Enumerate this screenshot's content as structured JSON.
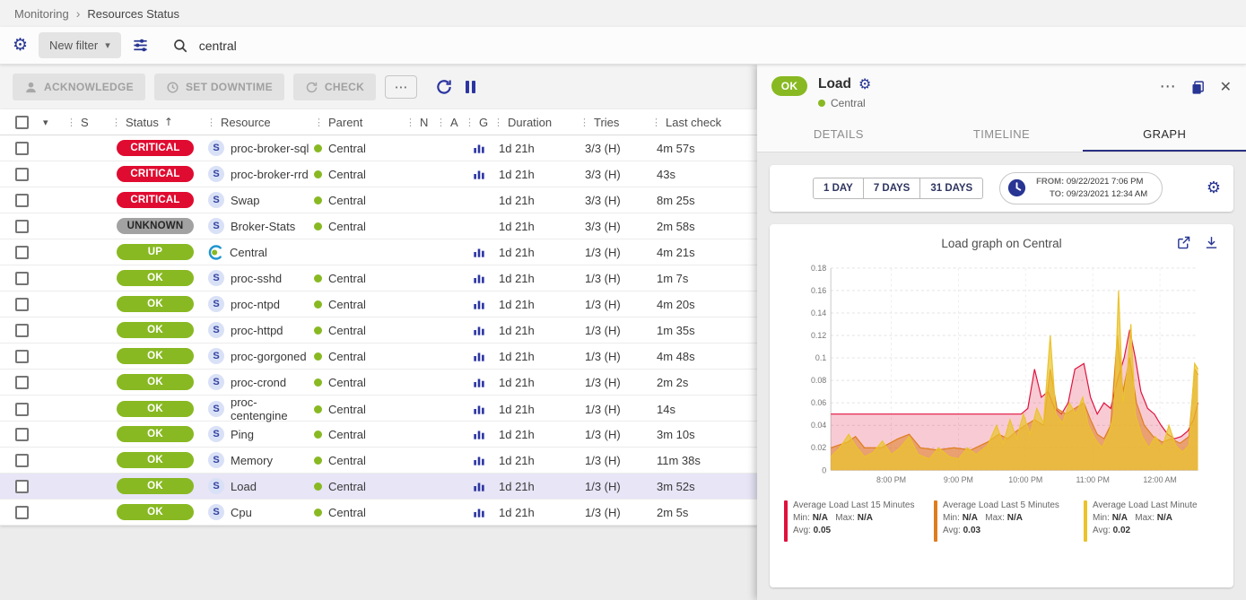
{
  "icons": {
    "gear": "⚙",
    "drag": "⋮",
    "sort_asc": "↑",
    "caret_down": "▾",
    "more": "⋯",
    "close": "✕",
    "crumb_separator": "›"
  },
  "breadcrumb": {
    "items": [
      "Monitoring",
      "Resources Status"
    ]
  },
  "filter_bar": {
    "new_filter_label": "New filter",
    "search_value": "central"
  },
  "toolbar": {
    "acknowledge_label": "ACKNOWLEDGE",
    "set_downtime_label": "SET DOWNTIME",
    "check_label": "CHECK"
  },
  "table": {
    "columns": {
      "s": "S",
      "status": "Status",
      "resource": "Resource",
      "parent": "Parent",
      "n": "N",
      "a": "A",
      "g": "G",
      "duration": "Duration",
      "tries": "Tries",
      "last_check": "Last check"
    },
    "rows": [
      {
        "status": "CRITICAL",
        "status_type": "critical",
        "resource_type": "service",
        "resource": "proc-broker-sql",
        "parent": "Central",
        "graph": true,
        "duration": "1d 21h",
        "tries": "3/3 (H)",
        "last_check": "4m 57s",
        "selected": false
      },
      {
        "status": "CRITICAL",
        "status_type": "critical",
        "resource_type": "service",
        "resource": "proc-broker-rrd",
        "parent": "Central",
        "graph": true,
        "duration": "1d 21h",
        "tries": "3/3 (H)",
        "last_check": "43s",
        "selected": false
      },
      {
        "status": "CRITICAL",
        "status_type": "critical",
        "resource_type": "service",
        "resource": "Swap",
        "parent": "Central",
        "graph": false,
        "duration": "1d 21h",
        "tries": "3/3 (H)",
        "last_check": "8m 25s",
        "selected": false
      },
      {
        "status": "UNKNOWN",
        "status_type": "unknown",
        "resource_type": "service",
        "resource": "Broker-Stats",
        "parent": "Central",
        "graph": false,
        "duration": "1d 21h",
        "tries": "3/3 (H)",
        "last_check": "2m 58s",
        "selected": false
      },
      {
        "status": "UP",
        "status_type": "ok",
        "resource_type": "host",
        "resource": "Central",
        "parent": "",
        "graph": true,
        "duration": "1d 21h",
        "tries": "1/3 (H)",
        "last_check": "4m 21s",
        "selected": false
      },
      {
        "status": "OK",
        "status_type": "ok",
        "resource_type": "service",
        "resource": "proc-sshd",
        "parent": "Central",
        "graph": true,
        "duration": "1d 21h",
        "tries": "1/3 (H)",
        "last_check": "1m 7s",
        "selected": false
      },
      {
        "status": "OK",
        "status_type": "ok",
        "resource_type": "service",
        "resource": "proc-ntpd",
        "parent": "Central",
        "graph": true,
        "duration": "1d 21h",
        "tries": "1/3 (H)",
        "last_check": "4m 20s",
        "selected": false
      },
      {
        "status": "OK",
        "status_type": "ok",
        "resource_type": "service",
        "resource": "proc-httpd",
        "parent": "Central",
        "graph": true,
        "duration": "1d 21h",
        "tries": "1/3 (H)",
        "last_check": "1m 35s",
        "selected": false
      },
      {
        "status": "OK",
        "status_type": "ok",
        "resource_type": "service",
        "resource": "proc-gorgoned",
        "parent": "Central",
        "graph": true,
        "duration": "1d 21h",
        "tries": "1/3 (H)",
        "last_check": "4m 48s",
        "selected": false
      },
      {
        "status": "OK",
        "status_type": "ok",
        "resource_type": "service",
        "resource": "proc-crond",
        "parent": "Central",
        "graph": true,
        "duration": "1d 21h",
        "tries": "1/3 (H)",
        "last_check": "2m 2s",
        "selected": false
      },
      {
        "status": "OK",
        "status_type": "ok",
        "resource_type": "service",
        "resource": "proc-centengine",
        "parent": "Central",
        "graph": true,
        "duration": "1d 21h",
        "tries": "1/3 (H)",
        "last_check": "14s",
        "selected": false
      },
      {
        "status": "OK",
        "status_type": "ok",
        "resource_type": "service",
        "resource": "Ping",
        "parent": "Central",
        "graph": true,
        "duration": "1d 21h",
        "tries": "1/3 (H)",
        "last_check": "3m 10s",
        "selected": false
      },
      {
        "status": "OK",
        "status_type": "ok",
        "resource_type": "service",
        "resource": "Memory",
        "parent": "Central",
        "graph": true,
        "duration": "1d 21h",
        "tries": "1/3 (H)",
        "last_check": "11m 38s",
        "selected": false
      },
      {
        "status": "OK",
        "status_type": "ok",
        "resource_type": "service",
        "resource": "Load",
        "parent": "Central",
        "graph": true,
        "duration": "1d 21h",
        "tries": "1/3 (H)",
        "last_check": "3m 52s",
        "selected": true
      },
      {
        "status": "OK",
        "status_type": "ok",
        "resource_type": "service",
        "resource": "Cpu",
        "parent": "Central",
        "graph": true,
        "duration": "1d 21h",
        "tries": "1/3 (H)",
        "last_check": "2m 5s",
        "selected": false
      }
    ]
  },
  "panel": {
    "status": "OK",
    "title": "Load",
    "parent": "Central",
    "tabs": [
      "DETAILS",
      "TIMELINE",
      "GRAPH"
    ],
    "active_tab": "GRAPH",
    "range_buttons": [
      "1 DAY",
      "7 DAYS",
      "31 DAYS"
    ],
    "time_labels": {
      "from": "FROM:",
      "to": "TO:"
    },
    "time_values": {
      "from": "09/22/2021 7:06 PM",
      "to": "09/23/2021 12:34 AM"
    }
  },
  "chart_data": {
    "type": "area",
    "title": "Load graph on Central",
    "xlabel": "",
    "ylabel": "",
    "x_unit_note": "minutes after 7:06 PM on 09/22/2021",
    "x_range": [
      0,
      328
    ],
    "ylim": [
      0,
      0.18
    ],
    "y_ticks": [
      0,
      0.02,
      0.04,
      0.06,
      0.08,
      0.1,
      0.12,
      0.14,
      0.16,
      0.18
    ],
    "x_ticks": [
      {
        "x": 54,
        "label": "8:00 PM"
      },
      {
        "x": 114,
        "label": "9:00 PM"
      },
      {
        "x": 174,
        "label": "10:00 PM"
      },
      {
        "x": 234,
        "label": "11:00 PM"
      },
      {
        "x": 294,
        "label": "12:00 AM"
      }
    ],
    "grid": true,
    "legend_position": "bottom",
    "legend_labels": {
      "min": "Min:",
      "max": "Max:",
      "avg": "Avg:"
    },
    "series": [
      {
        "name": "Average Load Last 15 Minutes",
        "color": "#e0113d",
        "fill_opacity": 0.22,
        "min": "N/A",
        "max": "N/A",
        "avg": "0.05",
        "points": [
          [
            0,
            0.05
          ],
          [
            20,
            0.05
          ],
          [
            40,
            0.05
          ],
          [
            60,
            0.05
          ],
          [
            80,
            0.05
          ],
          [
            100,
            0.05
          ],
          [
            120,
            0.05
          ],
          [
            140,
            0.05
          ],
          [
            160,
            0.05
          ],
          [
            170,
            0.05
          ],
          [
            176,
            0.055
          ],
          [
            182,
            0.09
          ],
          [
            188,
            0.065
          ],
          [
            194,
            0.07
          ],
          [
            200,
            0.055
          ],
          [
            206,
            0.05
          ],
          [
            212,
            0.06
          ],
          [
            218,
            0.09
          ],
          [
            226,
            0.095
          ],
          [
            232,
            0.065
          ],
          [
            238,
            0.05
          ],
          [
            244,
            0.06
          ],
          [
            250,
            0.055
          ],
          [
            256,
            0.08
          ],
          [
            262,
            0.1
          ],
          [
            267,
            0.125
          ],
          [
            272,
            0.1
          ],
          [
            277,
            0.07
          ],
          [
            283,
            0.055
          ],
          [
            289,
            0.05
          ],
          [
            295,
            0.04
          ],
          [
            301,
            0.032
          ],
          [
            307,
            0.028
          ],
          [
            313,
            0.03
          ],
          [
            319,
            0.035
          ],
          [
            324,
            0.045
          ],
          [
            328,
            0.06
          ]
        ]
      },
      {
        "name": "Average Load Last 5 Minutes",
        "color": "#df7d1e",
        "fill_opacity": 0.55,
        "min": "N/A",
        "max": "N/A",
        "avg": "0.03",
        "points": [
          [
            0,
            0.02
          ],
          [
            15,
            0.025
          ],
          [
            22,
            0.03
          ],
          [
            30,
            0.02
          ],
          [
            45,
            0.02
          ],
          [
            60,
            0.028
          ],
          [
            70,
            0.032
          ],
          [
            80,
            0.02
          ],
          [
            95,
            0.018
          ],
          [
            110,
            0.02
          ],
          [
            125,
            0.018
          ],
          [
            140,
            0.025
          ],
          [
            150,
            0.032
          ],
          [
            158,
            0.028
          ],
          [
            166,
            0.035
          ],
          [
            174,
            0.04
          ],
          [
            182,
            0.045
          ],
          [
            190,
            0.04
          ],
          [
            196,
            0.09
          ],
          [
            202,
            0.055
          ],
          [
            210,
            0.05
          ],
          [
            218,
            0.055
          ],
          [
            226,
            0.06
          ],
          [
            232,
            0.045
          ],
          [
            238,
            0.032
          ],
          [
            244,
            0.028
          ],
          [
            250,
            0.04
          ],
          [
            256,
            0.12
          ],
          [
            261,
            0.07
          ],
          [
            267,
            0.1
          ],
          [
            273,
            0.06
          ],
          [
            280,
            0.04
          ],
          [
            288,
            0.03
          ],
          [
            296,
            0.025
          ],
          [
            304,
            0.028
          ],
          [
            312,
            0.024
          ],
          [
            320,
            0.03
          ],
          [
            325,
            0.09
          ],
          [
            328,
            0.085
          ]
        ]
      },
      {
        "name": "Average Load Last Minute",
        "color": "#eac32d",
        "fill_opacity": 0.7,
        "min": "N/A",
        "max": "N/A",
        "avg": "0.02",
        "points": [
          [
            0,
            0.012
          ],
          [
            8,
            0.02
          ],
          [
            16,
            0.032
          ],
          [
            22,
            0.022
          ],
          [
            30,
            0.012
          ],
          [
            38,
            0.016
          ],
          [
            46,
            0.026
          ],
          [
            54,
            0.014
          ],
          [
            62,
            0.02
          ],
          [
            70,
            0.03
          ],
          [
            78,
            0.014
          ],
          [
            88,
            0.01
          ],
          [
            96,
            0.02
          ],
          [
            106,
            0.012
          ],
          [
            114,
            0.01
          ],
          [
            122,
            0.02
          ],
          [
            130,
            0.014
          ],
          [
            140,
            0.022
          ],
          [
            148,
            0.04
          ],
          [
            154,
            0.024
          ],
          [
            160,
            0.045
          ],
          [
            166,
            0.028
          ],
          [
            172,
            0.05
          ],
          [
            178,
            0.032
          ],
          [
            184,
            0.055
          ],
          [
            190,
            0.042
          ],
          [
            196,
            0.12
          ],
          [
            201,
            0.05
          ],
          [
            207,
            0.042
          ],
          [
            213,
            0.06
          ],
          [
            219,
            0.05
          ],
          [
            225,
            0.065
          ],
          [
            230,
            0.04
          ],
          [
            236,
            0.028
          ],
          [
            242,
            0.02
          ],
          [
            248,
            0.032
          ],
          [
            253,
            0.05
          ],
          [
            257,
            0.16
          ],
          [
            261,
            0.06
          ],
          [
            265,
            0.09
          ],
          [
            268,
            0.13
          ],
          [
            272,
            0.05
          ],
          [
            278,
            0.03
          ],
          [
            284,
            0.02
          ],
          [
            290,
            0.03
          ],
          [
            296,
            0.02
          ],
          [
            302,
            0.04
          ],
          [
            308,
            0.022
          ],
          [
            314,
            0.016
          ],
          [
            320,
            0.022
          ],
          [
            325,
            0.095
          ],
          [
            328,
            0.09
          ]
        ]
      }
    ]
  }
}
